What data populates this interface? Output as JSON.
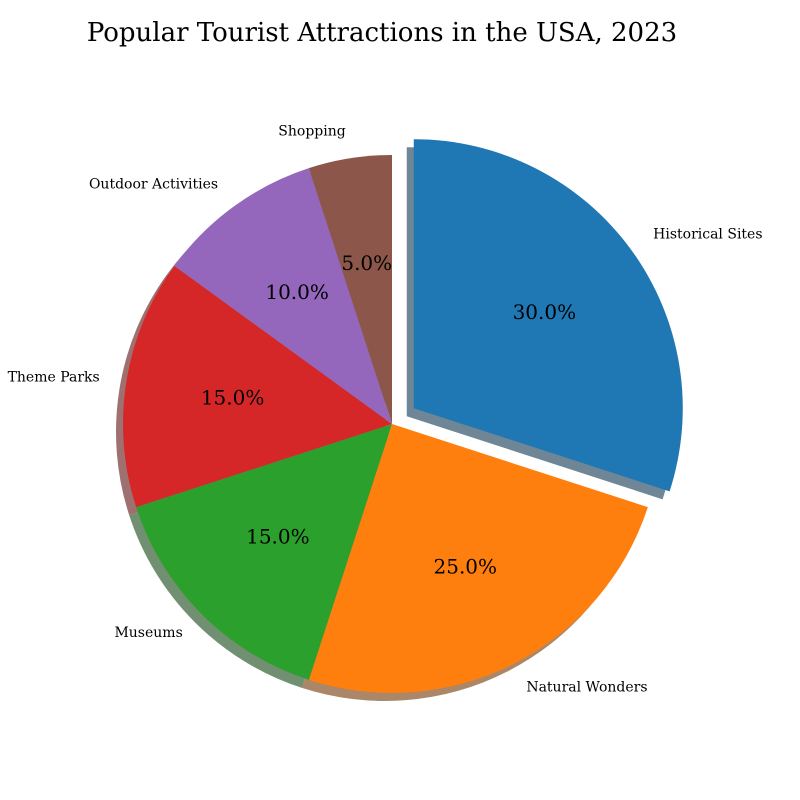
{
  "chart_data": {
    "type": "pie",
    "title": "Popular Tourist Attractions in the USA, 2023",
    "categories": [
      "Historical Sites",
      "Natural Wonders",
      "Museums",
      "Theme Parks",
      "Outdoor Activities",
      "Shopping"
    ],
    "values": [
      30,
      25,
      15,
      15,
      10,
      5
    ],
    "percent_labels": [
      "30.0%",
      "25.0%",
      "15.0%",
      "15.0%",
      "10.0%",
      "5.0%"
    ],
    "colors": [
      "#1f77b4",
      "#ff7f0e",
      "#2ca02c",
      "#d62728",
      "#9467bd",
      "#8c564b"
    ],
    "exploded": [
      0.1,
      0,
      0,
      0,
      0,
      0
    ],
    "start_angle": 90,
    "shadow": true
  }
}
